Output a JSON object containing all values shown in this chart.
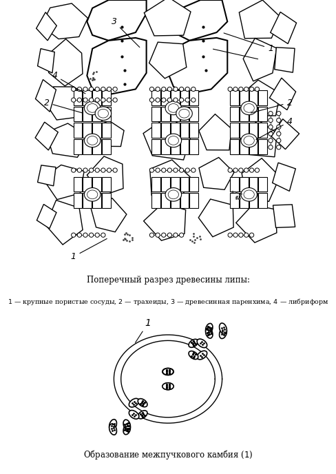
{
  "title1": "Поперечный разрез древесины липы:",
  "legend1": "1 — крупные пористые сосуды, 2 — трахеиды, 3 — древесинная паренхима, 4 — либриформ",
  "title2": "Образование межпучкового камбия (1)",
  "fig_width": 4.88,
  "fig_height": 6.88,
  "dpi": 100,
  "bg_color": "#ffffff",
  "line_color": "#000000"
}
